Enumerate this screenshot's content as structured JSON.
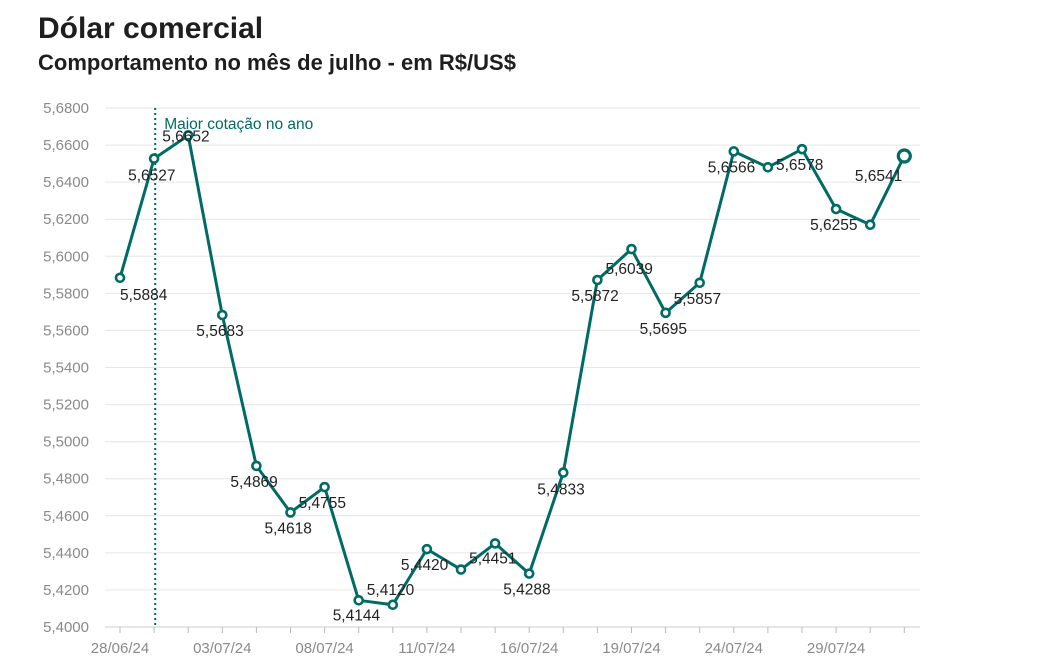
{
  "title": "Dólar comercial",
  "subtitle": "Comportamento no mês de julho - em R$/US$",
  "colors": {
    "line": "#006b66",
    "grid": "#e6e6e6",
    "text": "#222222",
    "axis": "#8a8a8a"
  },
  "chart_data": {
    "type": "line",
    "ylim": [
      5.4,
      5.68
    ],
    "y_ticks": [
      "5,4000",
      "5,4200",
      "5,4400",
      "5,4600",
      "5,4800",
      "5,5000",
      "5,5200",
      "5,5400",
      "5,5600",
      "5,5800",
      "5,6000",
      "5,6200",
      "5,6400",
      "5,6600",
      "5,6800"
    ],
    "x_ticks": [
      "28/06/24",
      "03/07/24",
      "08/07/24",
      "11/07/24",
      "16/07/24",
      "19/07/24",
      "24/07/24",
      "29/07/24"
    ],
    "grid": "horizontal",
    "series": [
      {
        "values": [
          5.5884,
          5.6527,
          5.6652,
          5.5683,
          5.4869,
          5.4618,
          5.4755,
          5.4144,
          5.412,
          5.442,
          5.431,
          5.4451,
          5.4288,
          5.4833,
          5.5872,
          5.6039,
          5.5695,
          5.5857,
          5.6566,
          5.648,
          5.6578,
          5.6255,
          5.617,
          5.6541
        ],
        "labels": [
          "5,5884",
          "5,6527",
          "5,6652",
          "5,5683",
          "5,4869",
          "5,4618",
          "5,4755",
          "5,4144",
          "5,4120",
          "5,4420",
          "",
          "5,4451",
          "5,4288",
          "5,4833",
          "5,5872",
          "5,6039",
          "5,5695",
          "5,5857",
          "5,6566",
          "",
          "5,6578",
          "5,6255",
          "",
          "5,6541"
        ]
      }
    ],
    "annotation": {
      "text": "Maior cotação no ano",
      "at_index": 2
    }
  }
}
